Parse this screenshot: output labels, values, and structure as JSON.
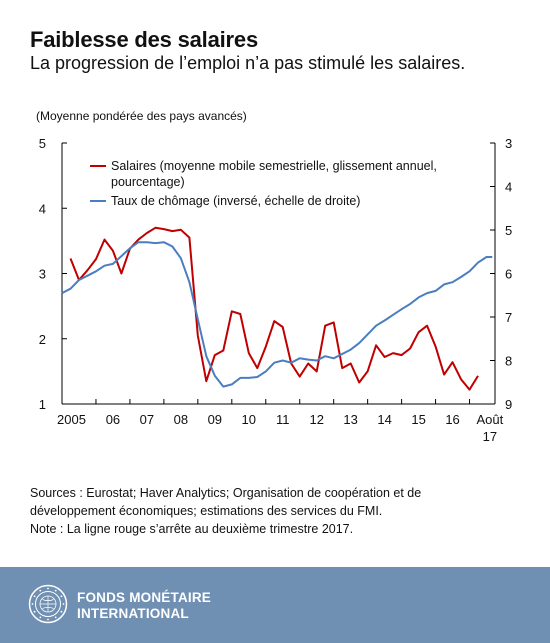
{
  "header": {
    "title": "Faiblesse des salaires",
    "subtitle": "La progression de l’emploi n’a pas stimulé les salaires."
  },
  "chart_data": {
    "type": "line",
    "axis_note": "(Moyenne pondérée des pays avancés)",
    "x_tick_labels": [
      "2005",
      "06",
      "07",
      "08",
      "09",
      "10",
      "11",
      "12",
      "13",
      "14",
      "15",
      "16",
      "Août",
      "17"
    ],
    "x_ticks": [
      2005,
      2006,
      2007,
      2008,
      2009,
      2010,
      2011,
      2012,
      2013,
      2014,
      2015,
      2016,
      2017
    ],
    "xlim": [
      2005.0,
      2017.75
    ],
    "y_left": {
      "ticks": [
        1,
        2,
        3,
        4,
        5
      ],
      "lim": [
        1,
        5
      ]
    },
    "y_right": {
      "ticks": [
        3,
        4,
        5,
        6,
        7,
        8,
        9
      ],
      "lim": [
        3,
        9
      ],
      "inverted": true
    },
    "grid": false,
    "legend_position": "top-left",
    "series": [
      {
        "name": "Salaires (moyenne mobile semestrielle, glissement annuel,",
        "name_line2": "pourcentage)",
        "color": "#c00000",
        "axis": "left",
        "x": [
          2005.25,
          2005.5,
          2005.75,
          2006.0,
          2006.25,
          2006.5,
          2006.75,
          2007.0,
          2007.25,
          2007.5,
          2007.75,
          2008.0,
          2008.25,
          2008.5,
          2008.75,
          2009.0,
          2009.25,
          2009.5,
          2009.75,
          2010.0,
          2010.25,
          2010.5,
          2010.75,
          2011.0,
          2011.25,
          2011.5,
          2011.75,
          2012.0,
          2012.25,
          2012.5,
          2012.75,
          2013.0,
          2013.25,
          2013.5,
          2013.75,
          2014.0,
          2014.25,
          2014.5,
          2014.75,
          2015.0,
          2015.25,
          2015.5,
          2015.75,
          2016.0,
          2016.25,
          2016.5,
          2016.75,
          2017.0,
          2017.25
        ],
        "values": [
          3.23,
          2.9,
          3.05,
          3.22,
          3.52,
          3.35,
          3.0,
          3.38,
          3.52,
          3.62,
          3.7,
          3.68,
          3.65,
          3.67,
          3.55,
          2.05,
          1.35,
          1.75,
          1.82,
          2.42,
          2.38,
          1.78,
          1.55,
          1.88,
          2.27,
          2.18,
          1.62,
          1.42,
          1.62,
          1.5,
          2.2,
          2.25,
          1.55,
          1.62,
          1.33,
          1.5,
          1.9,
          1.72,
          1.78,
          1.75,
          1.85,
          2.1,
          2.2,
          1.88,
          1.45,
          1.64,
          1.38,
          1.22,
          1.43
        ]
      },
      {
        "name": "Taux de chômage (inversé, échelle de droite)",
        "color": "#4a7ec0",
        "axis": "right",
        "x": [
          2005.0,
          2005.25,
          2005.5,
          2005.75,
          2006.0,
          2006.25,
          2006.5,
          2006.75,
          2007.0,
          2007.25,
          2007.5,
          2007.75,
          2008.0,
          2008.25,
          2008.5,
          2008.75,
          2009.0,
          2009.25,
          2009.5,
          2009.75,
          2010.0,
          2010.25,
          2010.5,
          2010.75,
          2011.0,
          2011.25,
          2011.5,
          2011.75,
          2012.0,
          2012.25,
          2012.5,
          2012.75,
          2013.0,
          2013.25,
          2013.5,
          2013.75,
          2014.0,
          2014.25,
          2014.5,
          2014.75,
          2015.0,
          2015.25,
          2015.5,
          2015.75,
          2016.0,
          2016.25,
          2016.5,
          2016.75,
          2017.0,
          2017.25,
          2017.5,
          2017.67
        ],
        "values": [
          6.45,
          6.35,
          6.15,
          6.05,
          5.95,
          5.82,
          5.78,
          5.6,
          5.42,
          5.28,
          5.28,
          5.3,
          5.28,
          5.38,
          5.65,
          6.2,
          7.05,
          7.9,
          8.35,
          8.6,
          8.55,
          8.4,
          8.4,
          8.38,
          8.25,
          8.05,
          8.0,
          8.05,
          7.95,
          7.98,
          8.0,
          7.9,
          7.95,
          7.85,
          7.75,
          7.6,
          7.4,
          7.2,
          7.08,
          6.95,
          6.82,
          6.7,
          6.55,
          6.45,
          6.4,
          6.25,
          6.2,
          6.08,
          5.95,
          5.75,
          5.62,
          5.62
        ]
      }
    ]
  },
  "notes": {
    "sources_line1": "Sources : Eurostat; Haver Analytics; Organisation de coopération et de",
    "sources_line2": "développement économiques; estimations des services du FMI.",
    "note": "Note : La ligne rouge s’arrête au deuxième trimestre 2017."
  },
  "footer": {
    "org_line1": "FONDS MONÉTAIRE",
    "org_line2": "INTERNATIONAL",
    "logo_icon": "imf-seal-icon"
  }
}
